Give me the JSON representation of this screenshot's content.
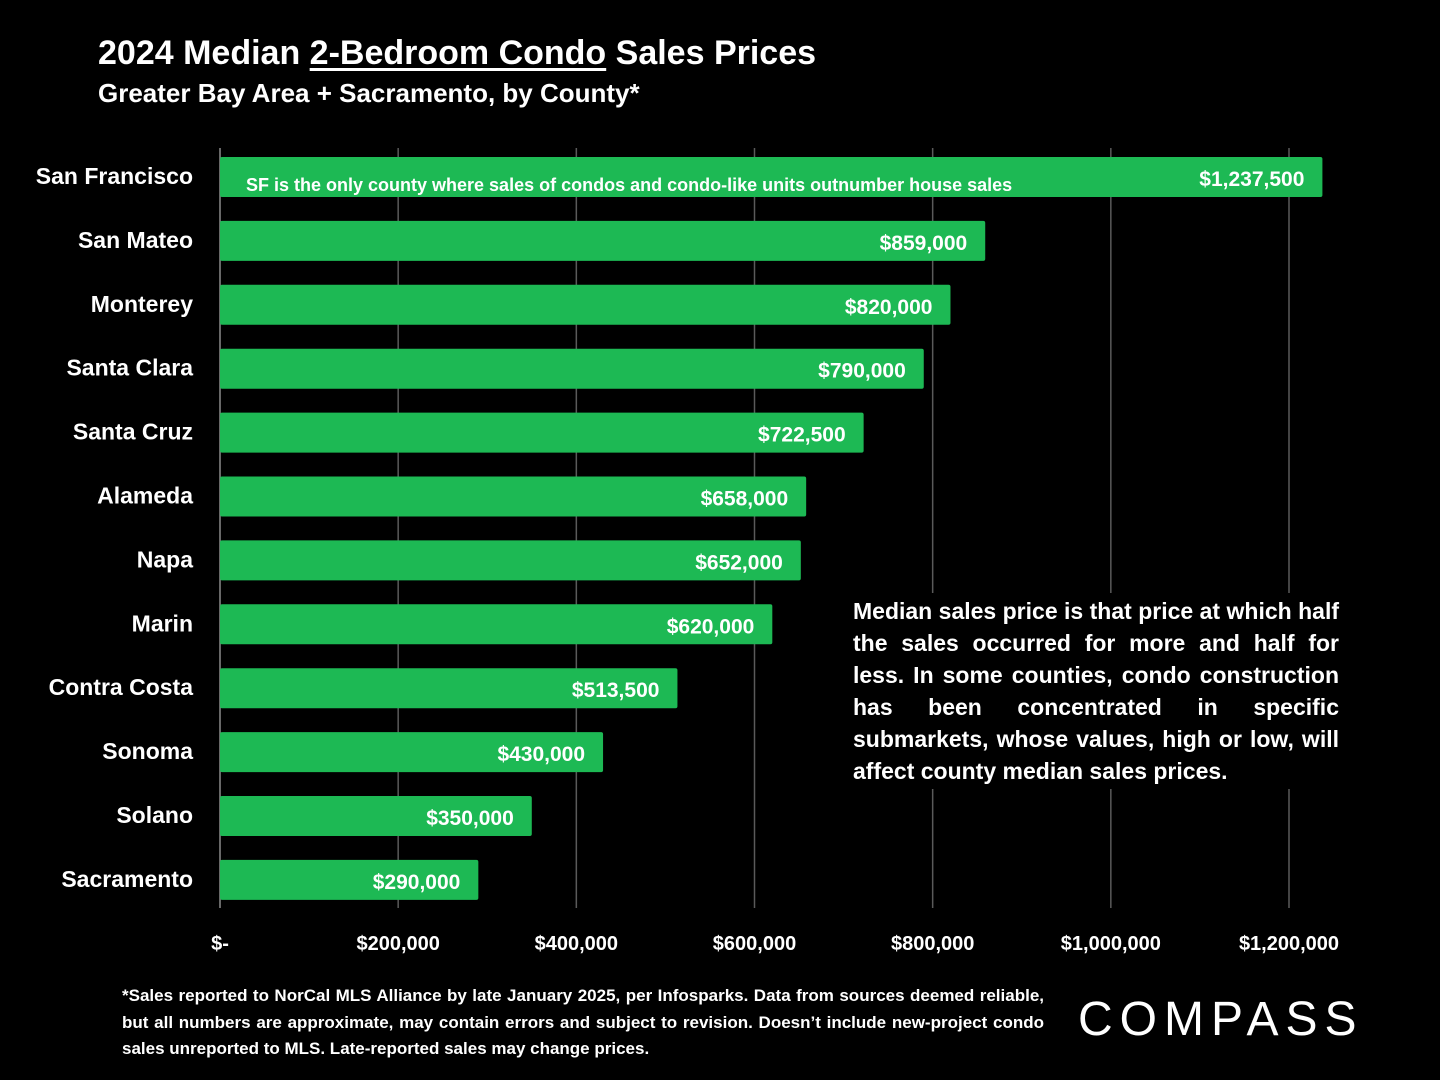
{
  "header": {
    "title_pre": "2024 Median ",
    "title_underlined": "2-Bedroom Condo",
    "title_post": " Sales Prices",
    "subtitle": "Greater Bay Area + Sacramento, by County*"
  },
  "chart_data": {
    "type": "bar",
    "orientation": "horizontal",
    "categories": [
      "San Francisco",
      "San Mateo",
      "Monterey",
      "Santa Clara",
      "Santa Cruz",
      "Alameda",
      "Napa",
      "Marin",
      "Contra Costa",
      "Sonoma",
      "Solano",
      "Sacramento"
    ],
    "values": [
      1237500,
      859000,
      820000,
      790000,
      722500,
      658000,
      652000,
      620000,
      513500,
      430000,
      350000,
      290000
    ],
    "data_labels": [
      "$1,237,500",
      "$859,000",
      "$820,000",
      "$790,000",
      "$722,500",
      "$658,000",
      "$652,000",
      "$620,000",
      "$513,500",
      "$430,000",
      "$350,000",
      "$290,000"
    ],
    "x_ticks": [
      0,
      200000,
      400000,
      600000,
      800000,
      1000000,
      1200000
    ],
    "x_tick_labels": [
      "$-",
      "$200,000",
      "$400,000",
      "$600,000",
      "$800,000",
      "$1,000,000",
      "$1,200,000"
    ],
    "xlim": [
      0,
      1200000
    ],
    "grid": "vertical",
    "bar_color": "#1DB954",
    "background": "#000000",
    "annotation": "SF is the only county where sales of condos and condo-like units outnumber house sales"
  },
  "note": "Median sales price is that price at which half the sales occurred for more and half for less. In some counties, condo construction has been concentrated in specific submarkets, whose values, high or low, will affect county median sales prices.",
  "footnote": "*Sales reported to NorCal MLS Alliance by late January 2025, per Infosparks. Data from sources deemed reliable, but all numbers are approximate, may contain errors and subject to revision. Doesn’t include new-project condo sales unreported to MLS. Late-reported sales may change prices.",
  "logo": "COMPASS"
}
